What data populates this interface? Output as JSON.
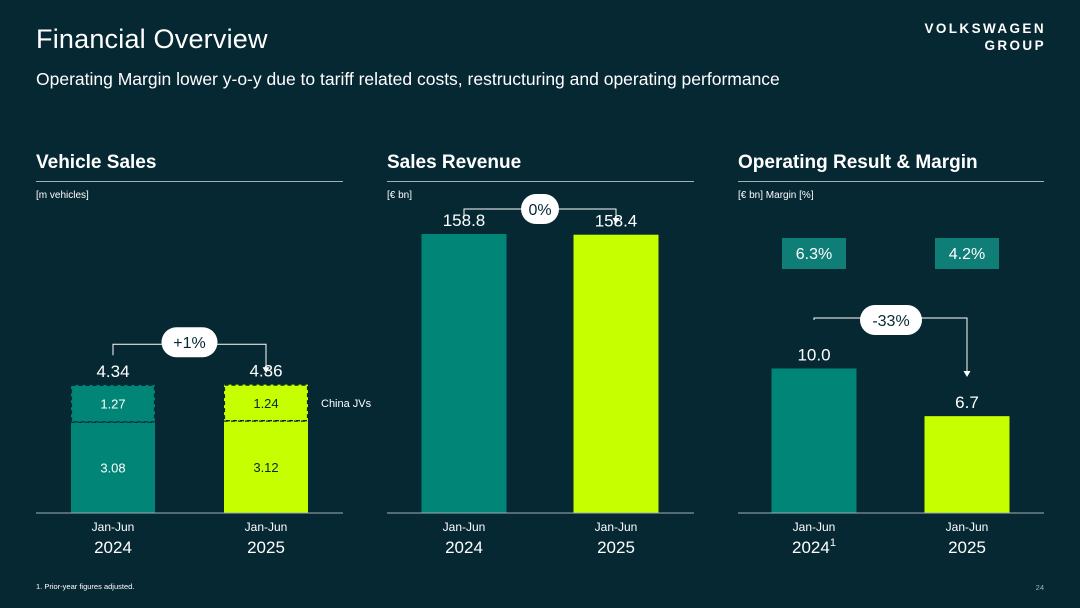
{
  "header": {
    "title": "Financial Overview",
    "subtitle": "Operating Margin lower y-o-y due to tariff related costs, restructuring and operating performance",
    "brand_line1": "VOLKSWAGEN",
    "brand_line2": "GROUP"
  },
  "colors": {
    "background": "#062833",
    "teal": "#008577",
    "lime": "#c6ff00",
    "margin_badge": "#0e7e77",
    "dark_text": "#062833"
  },
  "footnote": "1. Prior-year figures adjusted.",
  "page_number": "24",
  "chart_data": [
    {
      "type": "bar",
      "stacked": true,
      "title": "Vehicle Sales",
      "unit": "[m vehicles]",
      "categories": [
        {
          "period": "Jan-Jun",
          "year": "2024",
          "sup": ""
        },
        {
          "period": "Jan-Jun",
          "year": "2025",
          "sup": ""
        }
      ],
      "totals": [
        4.34,
        4.36
      ],
      "totals_labels": [
        "4.34",
        "4.36"
      ],
      "series": [
        {
          "values": [
            3.08,
            3.12
          ],
          "labels": [
            "3.08",
            "3.12"
          ]
        },
        {
          "name": "China JVs",
          "values": [
            1.27,
            1.24
          ],
          "labels": [
            "1.27",
            "1.24"
          ]
        }
      ],
      "change": "+1%",
      "ylim": [
        0,
        10.8
      ]
    },
    {
      "type": "bar",
      "title": "Sales Revenue",
      "unit": "[€ bn]",
      "categories": [
        {
          "period": "Jan-Jun",
          "year": "2024",
          "sup": ""
        },
        {
          "period": "Jan-Jun",
          "year": "2025",
          "sup": ""
        }
      ],
      "values": [
        158.8,
        158.4
      ],
      "labels": [
        "158.8",
        "158.4"
      ],
      "change": "0%",
      "ylim": [
        0,
        181
      ]
    },
    {
      "type": "bar",
      "title": "Operating Result & Margin",
      "unit": "[€ bn] Margin [%]",
      "categories": [
        {
          "period": "Jan-Jun",
          "year": "2024",
          "sup": "1"
        },
        {
          "period": "Jan-Jun",
          "year": "2025",
          "sup": ""
        }
      ],
      "values": [
        10.0,
        6.7
      ],
      "labels": [
        "10.0",
        "6.7"
      ],
      "margins": [
        "6.3%",
        "4.2%"
      ],
      "change": "-33%",
      "ylim": [
        0,
        22
      ]
    }
  ]
}
